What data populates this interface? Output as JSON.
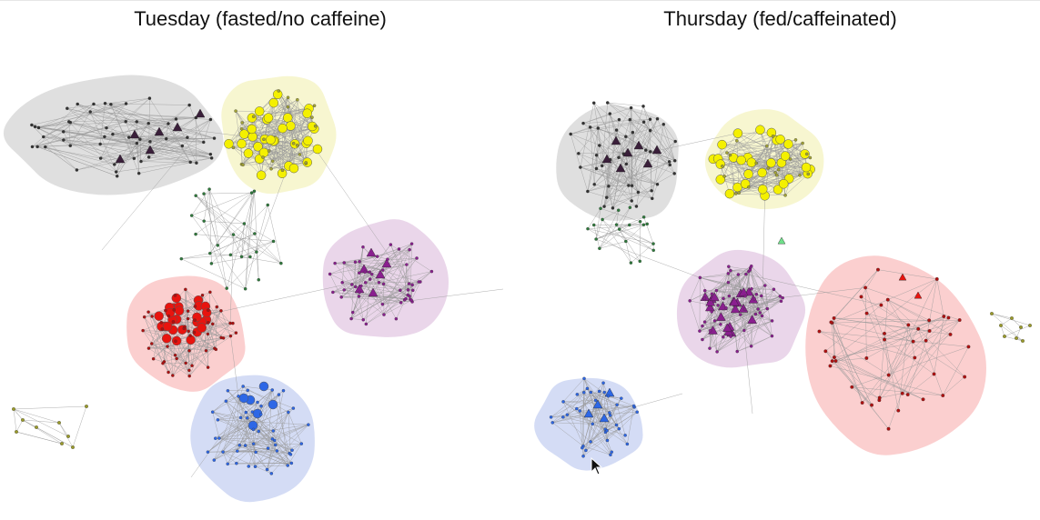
{
  "figure": {
    "panels": [
      {
        "id": "tuesday",
        "title": "Tuesday (fasted/no caffeine)"
      },
      {
        "id": "thursday",
        "title": "Thursday (fed/caffeinated)"
      }
    ]
  },
  "colors": {
    "gray": "#333333",
    "gray_hull": "#d9d9d9",
    "yellow": "#f4f000",
    "yellow_hull": "#f6f5c8",
    "purple": "#8a1f8f",
    "purple_hull": "#e6cfe6",
    "red": "#e8140f",
    "red_hull": "#fac7c7",
    "blue": "#2d67e6",
    "blue_hull": "#cdd6f3",
    "green": "#2f7a3c",
    "olive": "#9a9a2a",
    "edge": "#9a9a9a"
  }
}
